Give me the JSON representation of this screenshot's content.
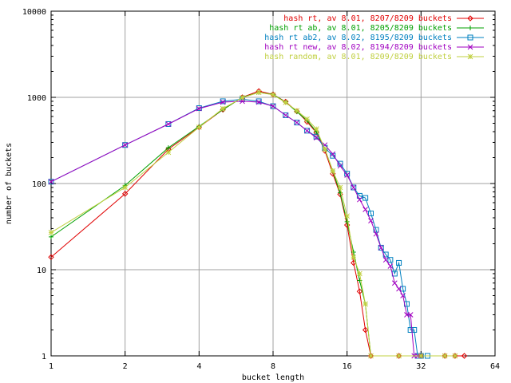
{
  "chart_data": {
    "type": "line",
    "title": "",
    "xlabel": "bucket length",
    "ylabel": "number of buckets",
    "x_scale": "log2",
    "y_scale": "log10",
    "xlim": [
      1,
      64
    ],
    "ylim": [
      1,
      10000
    ],
    "x_ticks": [
      "1",
      "2",
      "4",
      "8",
      "16",
      "32",
      "64"
    ],
    "y_ticks": [
      "1",
      "10",
      "100",
      "1000",
      "10000"
    ],
    "grid": true,
    "legend_position": "top-right",
    "series": [
      {
        "name": "hash rt, av 8.01, 8207/8209 buckets",
        "color": "#e00000",
        "marker": "diamond",
        "points": [
          [
            1,
            14
          ],
          [
            2,
            76
          ],
          [
            3,
            250
          ],
          [
            4,
            450
          ],
          [
            5,
            720
          ],
          [
            6,
            1000
          ],
          [
            7,
            1180
          ],
          [
            8,
            1080
          ],
          [
            9,
            890
          ],
          [
            10,
            690
          ],
          [
            11,
            520
          ],
          [
            12,
            390
          ],
          [
            13,
            240
          ],
          [
            14,
            130
          ],
          [
            15,
            75
          ],
          [
            16,
            33
          ],
          [
            17,
            12
          ],
          [
            18,
            5.6
          ],
          [
            19,
            2
          ],
          [
            20,
            1
          ],
          [
            26,
            1
          ],
          [
            32,
            1
          ],
          [
            40,
            1
          ],
          [
            44,
            1
          ],
          [
            48,
            1
          ]
        ]
      },
      {
        "name": "hash rt ab, av 8.01, 8205/8209 buckets",
        "color": "#00a000",
        "marker": "plus",
        "points": [
          [
            1,
            24
          ],
          [
            2,
            95
          ],
          [
            3,
            260
          ],
          [
            4,
            460
          ],
          [
            5,
            720
          ],
          [
            6,
            1000
          ],
          [
            7,
            1140
          ],
          [
            8,
            1080
          ],
          [
            9,
            880
          ],
          [
            10,
            680
          ],
          [
            11,
            540
          ],
          [
            12,
            400
          ],
          [
            13,
            250
          ],
          [
            14,
            140
          ],
          [
            15,
            78
          ],
          [
            16,
            36
          ],
          [
            17,
            16
          ],
          [
            18,
            7.5
          ],
          [
            19,
            4
          ],
          [
            20,
            1
          ],
          [
            26,
            1
          ],
          [
            32,
            1
          ],
          [
            40,
            1
          ],
          [
            44,
            1
          ]
        ]
      },
      {
        "name": "hash rt ab2, av 8.02, 8195/8209 buckets",
        "color": "#0080c0",
        "marker": "square",
        "points": [
          [
            1,
            105
          ],
          [
            2,
            280
          ],
          [
            3,
            490
          ],
          [
            4,
            750
          ],
          [
            5,
            900
          ],
          [
            6,
            950
          ],
          [
            7,
            900
          ],
          [
            8,
            790
          ],
          [
            9,
            620
          ],
          [
            10,
            510
          ],
          [
            11,
            410
          ],
          [
            12,
            350
          ],
          [
            13,
            260
          ],
          [
            14,
            210
          ],
          [
            15,
            170
          ],
          [
            16,
            130
          ],
          [
            17,
            90
          ],
          [
            18,
            72
          ],
          [
            19,
            68
          ],
          [
            20,
            45
          ],
          [
            21,
            29
          ],
          [
            22,
            18
          ],
          [
            23,
            15
          ],
          [
            24,
            13
          ],
          [
            25,
            9
          ],
          [
            26,
            12
          ],
          [
            27,
            6
          ],
          [
            28,
            4
          ],
          [
            29,
            2
          ],
          [
            30,
            2
          ],
          [
            31,
            1
          ],
          [
            32,
            1
          ],
          [
            34,
            1
          ]
        ]
      },
      {
        "name": "hash rt new, av 8.02, 8194/8209 buckets",
        "color": "#a000c0",
        "marker": "cross",
        "points": [
          [
            1,
            105
          ],
          [
            2,
            280
          ],
          [
            3,
            490
          ],
          [
            4,
            740
          ],
          [
            5,
            880
          ],
          [
            6,
            900
          ],
          [
            7,
            880
          ],
          [
            8,
            790
          ],
          [
            9,
            620
          ],
          [
            10,
            510
          ],
          [
            11,
            410
          ],
          [
            12,
            340
          ],
          [
            13,
            280
          ],
          [
            14,
            220
          ],
          [
            15,
            160
          ],
          [
            16,
            125
          ],
          [
            17,
            90
          ],
          [
            18,
            65
          ],
          [
            19,
            50
          ],
          [
            20,
            37
          ],
          [
            21,
            26
          ],
          [
            22,
            18
          ],
          [
            23,
            13
          ],
          [
            24,
            11
          ],
          [
            25,
            7
          ],
          [
            26,
            6
          ],
          [
            27,
            5
          ],
          [
            28,
            3
          ],
          [
            29,
            3
          ],
          [
            30,
            1
          ],
          [
            31,
            1
          ],
          [
            32,
            1
          ]
        ]
      },
      {
        "name": "hash random, av 8.01, 8209/8209 buckets",
        "color": "#c0d040",
        "marker": "star",
        "points": [
          [
            1,
            27
          ],
          [
            2,
            90
          ],
          [
            3,
            230
          ],
          [
            4,
            450
          ],
          [
            5,
            740
          ],
          [
            6,
            990
          ],
          [
            7,
            1140
          ],
          [
            8,
            1070
          ],
          [
            9,
            870
          ],
          [
            10,
            700
          ],
          [
            11,
            560
          ],
          [
            12,
            430
          ],
          [
            13,
            250
          ],
          [
            14,
            140
          ],
          [
            15,
            90
          ],
          [
            16,
            42
          ],
          [
            17,
            14
          ],
          [
            18,
            9
          ],
          [
            19,
            4
          ],
          [
            20,
            1
          ],
          [
            26,
            1
          ],
          [
            32,
            1
          ],
          [
            40,
            1
          ],
          [
            44,
            1
          ]
        ]
      }
    ]
  }
}
